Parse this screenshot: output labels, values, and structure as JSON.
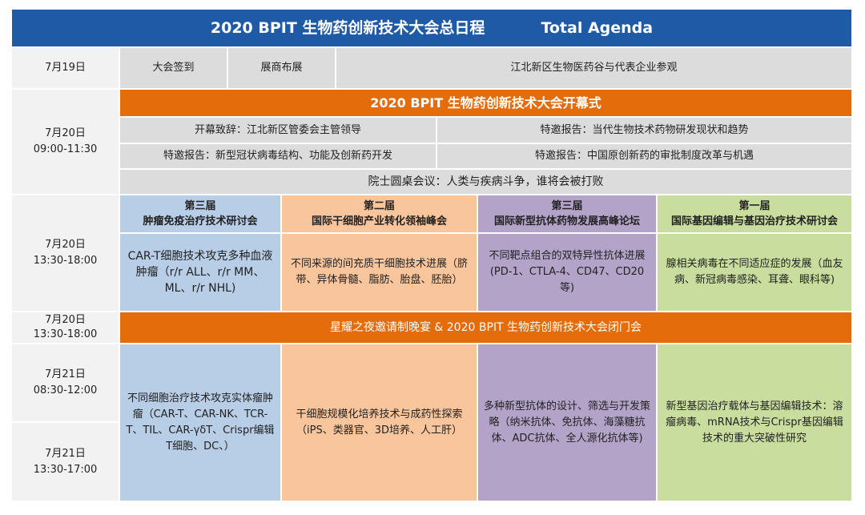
{
  "header": {
    "title_cn": "2020 BPIT 生物药创新技术大会总日程",
    "title_en": "Total Agenda"
  },
  "day1": {
    "date": "7月19日",
    "items": [
      "大会签到",
      "展商布展",
      "江北新区生物医药谷与代表企业参观"
    ]
  },
  "opening": {
    "date": "7月20日",
    "time": "09:00-11:30",
    "title": "2020 BPIT 生物药创新技术大会开幕式",
    "items": [
      "开幕致辞：江北新区管委会主管领导",
      "特邀报告：当代生物技术药物研发现状和趋势",
      "特邀报告：新型冠状病毒结构、功能及创新药开发",
      "特邀报告：中国原创新药的审批制度改革与机遇",
      "院士圆桌会议：人类与疾病斗争，谁将会被打败"
    ]
  },
  "forums": {
    "date": "7月20日",
    "time": "13:30-18:00",
    "columns": [
      {
        "edition": "第三届",
        "name": "肿瘤免疫治疗技术研讨会",
        "color": "#b8cde6",
        "topic1": "CAR-T细胞技术攻克多种血液肿瘤（r/r ALL、r/r MM、ML、r/r NHL)",
        "topic2": "不同细胞治疗技术攻克实体瘤肿瘤（CAR-T、CAR-NK、TCR-T、TIL、CAR-γδT、Crispr编辑T细胞、DC、）"
      },
      {
        "edition": "第二届",
        "name": "国际干细胞产业转化领袖峰会",
        "color": "#f9c59c",
        "topic1": "不同来源的间充质干细胞技术进展（脐带、异体骨髓、脂肪、胎盘、胚胎）",
        "topic2": "干细胞规模化培养技术与成药性探索（iPS、类器官、3D培养、人工肝）"
      },
      {
        "edition": "第三届",
        "name": "国际新型抗体药物发展高峰论坛",
        "color": "#b3a3c8",
        "topic1": "不同靶点组合的双特异性抗体进展(PD-1、CTLA-4、CD47、CD20等)",
        "topic2": "多种新型抗体的设计、筛选与开发策略（纳米抗体、免抗体、海藻糖抗体、ADC抗体、全人源化抗体等)"
      },
      {
        "edition": "第一届",
        "name": "国际基因编辑与基因治疗技术研讨会",
        "color": "#c8dd9e",
        "topic1": "腺相关病毒在不同适应症的发展（血友病、新冠病毒感染、耳聋、眼科等)",
        "topic2": "新型基因治疗载体与基因编辑技术：溶瘤病毒、mRNA技术与Crispr基因编辑技术的重大突破性研究"
      }
    ]
  },
  "evening": {
    "date": "7月20日",
    "time": "13:30-18:00",
    "title": "星耀之夜邀请制晚宴 & 2020 BPIT 生物药创新技术大会闭门会"
  },
  "day3": [
    {
      "date": "7月21日",
      "time": "08:30-12:00"
    },
    {
      "date": "7月21日",
      "time": "13:30-17:00"
    }
  ]
}
